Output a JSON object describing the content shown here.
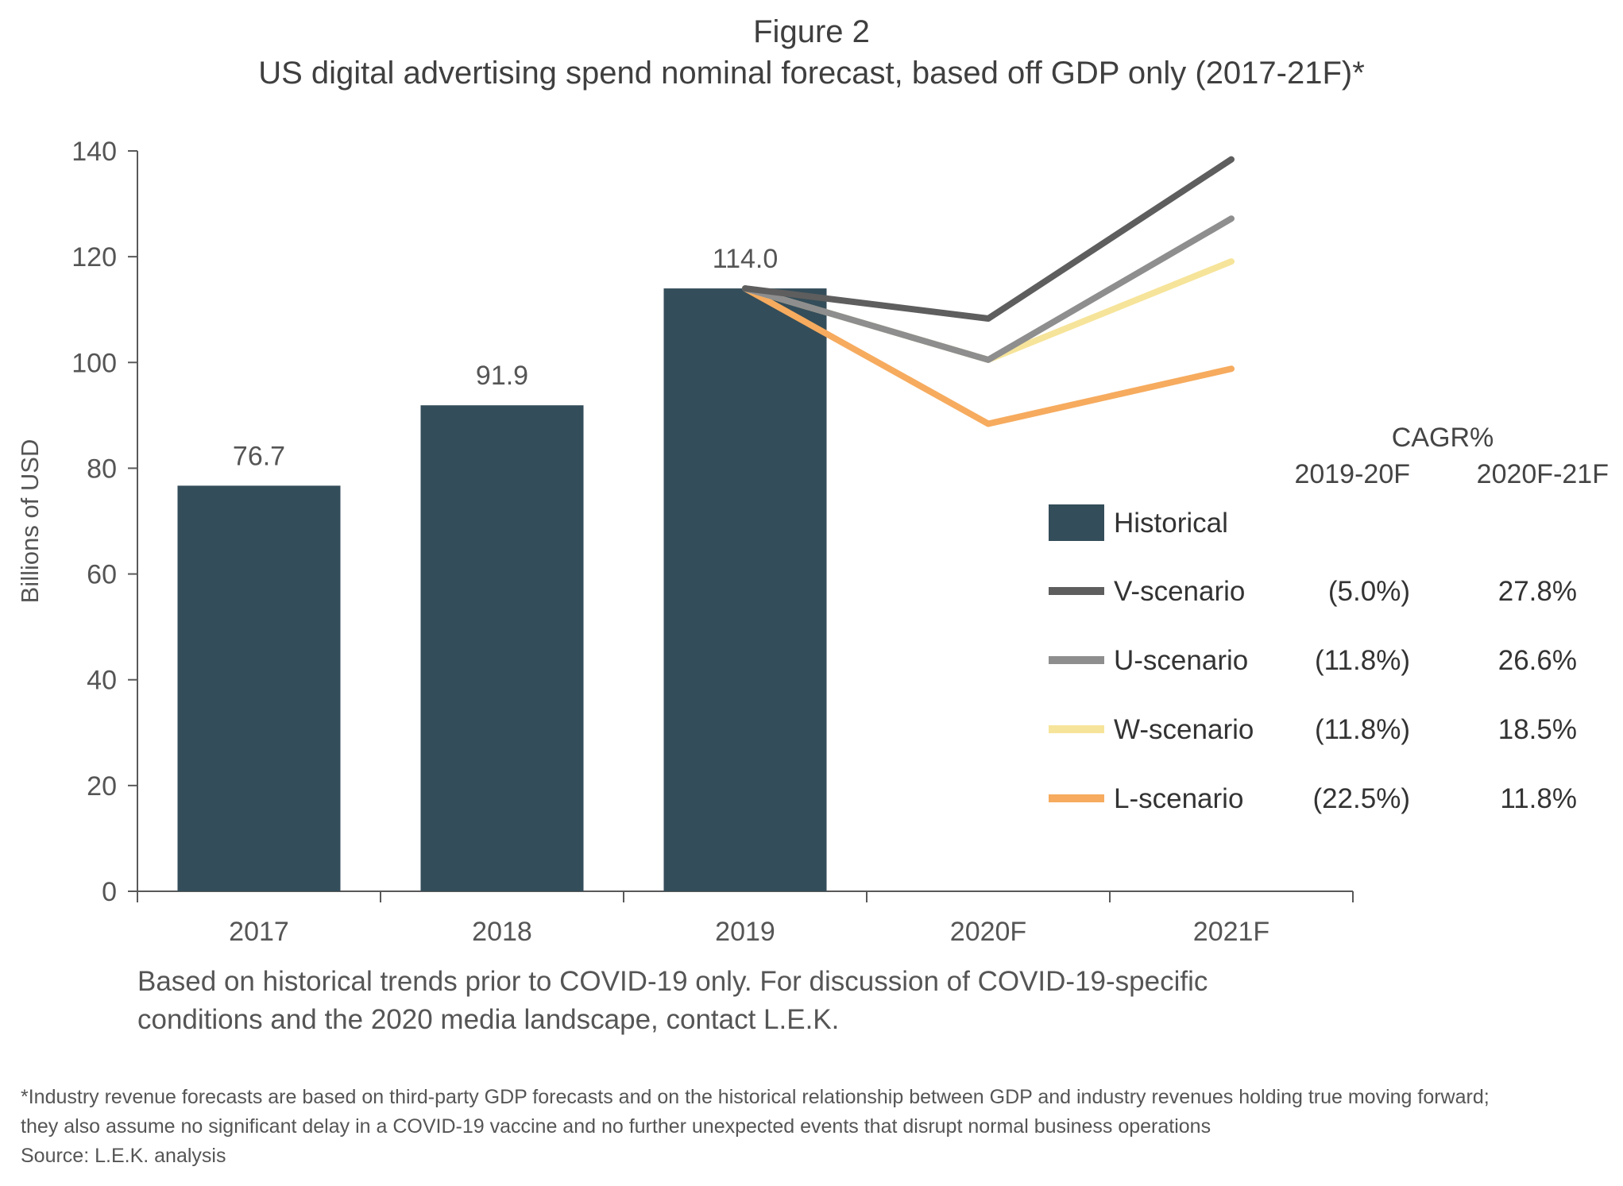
{
  "header": {
    "figure_number": "Figure 2",
    "title": "US digital advertising spend nominal forecast, based off GDP only (2017-21F)*"
  },
  "chart_data": {
    "type": "bar+line",
    "ylabel": "Billions of USD",
    "xlabel": "",
    "ylim": [
      0,
      140
    ],
    "yticks": [
      "0",
      "20",
      "40",
      "60",
      "80",
      "100",
      "120",
      "140"
    ],
    "categories": [
      "2017",
      "2018",
      "2019",
      "2020F",
      "2021F"
    ],
    "bars": {
      "name": "Historical",
      "color": "#344d5a",
      "categories": [
        "2017",
        "2018",
        "2019"
      ],
      "values": [
        76.7,
        91.9,
        114.0
      ],
      "labels": [
        "76.7",
        "91.9",
        "114.0"
      ]
    },
    "series": [
      {
        "name": "V-scenario",
        "color": "#5e5e5e",
        "x": [
          "2019",
          "2020F",
          "2021F"
        ],
        "values": [
          114.0,
          108.3,
          138.4
        ],
        "cagr_2019_20F": "(5.0%)",
        "cagr_2020F_21F": "27.8%"
      },
      {
        "name": "U-scenario",
        "color": "#8e8e8e",
        "x": [
          "2019",
          "2020F",
          "2021F"
        ],
        "values": [
          114.0,
          100.5,
          127.2
        ],
        "cagr_2019_20F": "(11.8%)",
        "cagr_2020F_21F": "26.6%"
      },
      {
        "name": "W-scenario",
        "color": "#f6e49a",
        "x": [
          "2019",
          "2020F",
          "2021F"
        ],
        "values": [
          114.0,
          100.5,
          119.1
        ],
        "cagr_2019_20F": "(11.8%)",
        "cagr_2020F_21F": "18.5%"
      },
      {
        "name": "L-scenario",
        "color": "#f6ab5e",
        "x": [
          "2019",
          "2020F",
          "2021F"
        ],
        "values": [
          114.0,
          88.4,
          98.8
        ],
        "cagr_2019_20F": "(22.5%)",
        "cagr_2020F_21F": "11.8%"
      }
    ],
    "legend": {
      "placement": "right",
      "cagr_heading": "CAGR%",
      "col1_heading": "2019-20F",
      "col2_heading": "2020F-21F"
    },
    "grid": false
  },
  "note": {
    "line1": "Based on historical trends prior to COVID-19 only. For discussion of COVID-19-specific",
    "line2": "conditions and the 2020 media landscape, contact L.E.K."
  },
  "footnote": {
    "line1": "*Industry revenue forecasts are based on third-party GDP forecasts and on the historical relationship between GDP and industry revenues holding true moving forward;",
    "line2": "they also assume no significant delay in a COVID-19 vaccine and no further unexpected events that disrupt normal business operations",
    "source": "Source: L.E.K. analysis"
  }
}
